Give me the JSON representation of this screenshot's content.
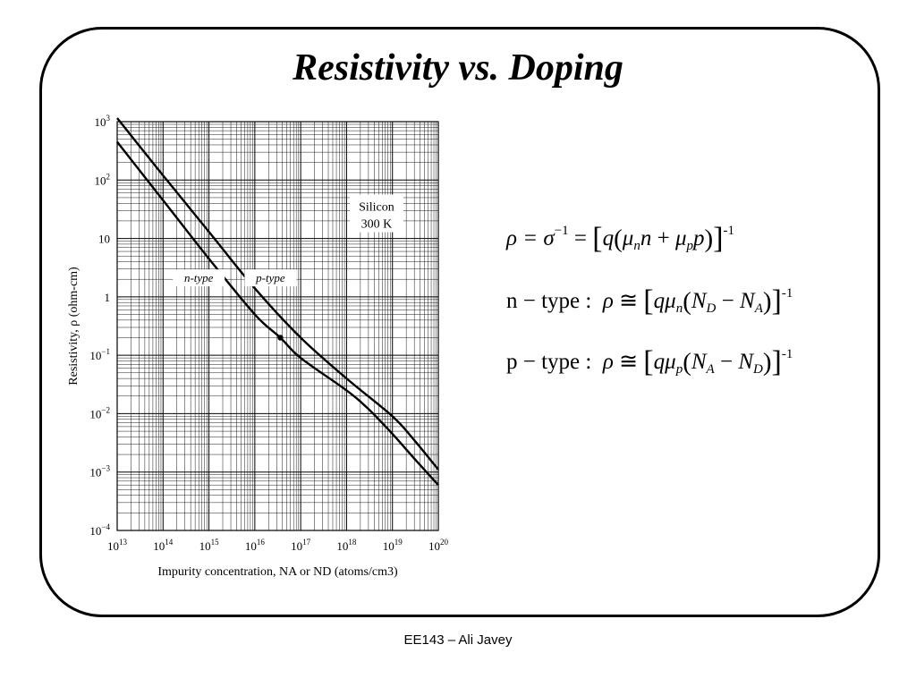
{
  "slide": {
    "title": "Resistivity vs. Doping",
    "footer": "EE143 – Ali Javey"
  },
  "equations": {
    "general": {
      "lhs": "ρ = σ",
      "lhs_exp": "−1",
      "rhs_exp": "-1"
    },
    "n_type": {
      "label": "n − type :",
      "sub_mu": "n",
      "sub_a": "D",
      "sub_b": "A",
      "exp": "-1"
    },
    "p_type": {
      "label": "p − type :",
      "sub_mu": "p",
      "sub_a": "A",
      "sub_b": "D",
      "exp": "-1"
    }
  },
  "chart_data": {
    "type": "line",
    "x_scale": "log",
    "y_scale": "log",
    "xlim": [
      10000000000000.0,
      1e+20
    ],
    "ylim": [
      0.0001,
      1000.0
    ],
    "grid": true,
    "xlabel": "Impurity concentration, NA or ND (atoms/cm3)",
    "ylabel": "Resistivity, ρ (ohm-cm)",
    "x_ticks": [
      {
        "base": "10",
        "exp": "13"
      },
      {
        "base": "10",
        "exp": "14"
      },
      {
        "base": "10",
        "exp": "15"
      },
      {
        "base": "10",
        "exp": "16"
      },
      {
        "base": "10",
        "exp": "17"
      },
      {
        "base": "10",
        "exp": "18"
      },
      {
        "base": "10",
        "exp": "19"
      },
      {
        "base": "10",
        "exp": "20"
      }
    ],
    "y_ticks": [
      {
        "value": 1000,
        "base": "10",
        "exp": "3"
      },
      {
        "value": 100,
        "base": "10",
        "exp": "2"
      },
      {
        "value": 10,
        "base": "10",
        "exp": ""
      },
      {
        "value": 1,
        "base": "1",
        "exp": ""
      },
      {
        "value": 0.1,
        "base": "10",
        "exp": "−1"
      },
      {
        "value": 0.01,
        "base": "10",
        "exp": "−2"
      },
      {
        "value": 0.001,
        "base": "10",
        "exp": "−3"
      },
      {
        "value": 0.0001,
        "base": "10",
        "exp": "−4"
      }
    ],
    "annotation": {
      "line1": "Silicon",
      "line2": "300 K",
      "x": 4.5e+18,
      "y": 17
    },
    "marker": {
      "x": 3.6e+16,
      "y": 0.2
    },
    "series": [
      {
        "name": "n-type",
        "label_x": 600000000000000.0,
        "label_y": 1.8,
        "x": [
          10000000000000.0,
          100000000000000.0,
          1000000000000000.0,
          1e+16,
          3.6e+16,
          1e+17,
          1e+18,
          3e+18,
          1e+19,
          3e+19,
          1e+20
        ],
        "y": [
          450,
          45,
          4.5,
          0.5,
          0.2,
          0.09,
          0.025,
          0.012,
          0.0045,
          0.0017,
          0.0006
        ]
      },
      {
        "name": "p-type",
        "label_x": 2.2e+16,
        "label_y": 1.8,
        "x": [
          10000000000000.0,
          100000000000000.0,
          1000000000000000.0,
          1e+16,
          1e+17,
          1e+18,
          1e+19,
          3e+19,
          1e+20
        ],
        "y": [
          1150,
          120,
          13,
          1.4,
          0.2,
          0.04,
          0.009,
          0.0035,
          0.0011
        ]
      }
    ]
  }
}
